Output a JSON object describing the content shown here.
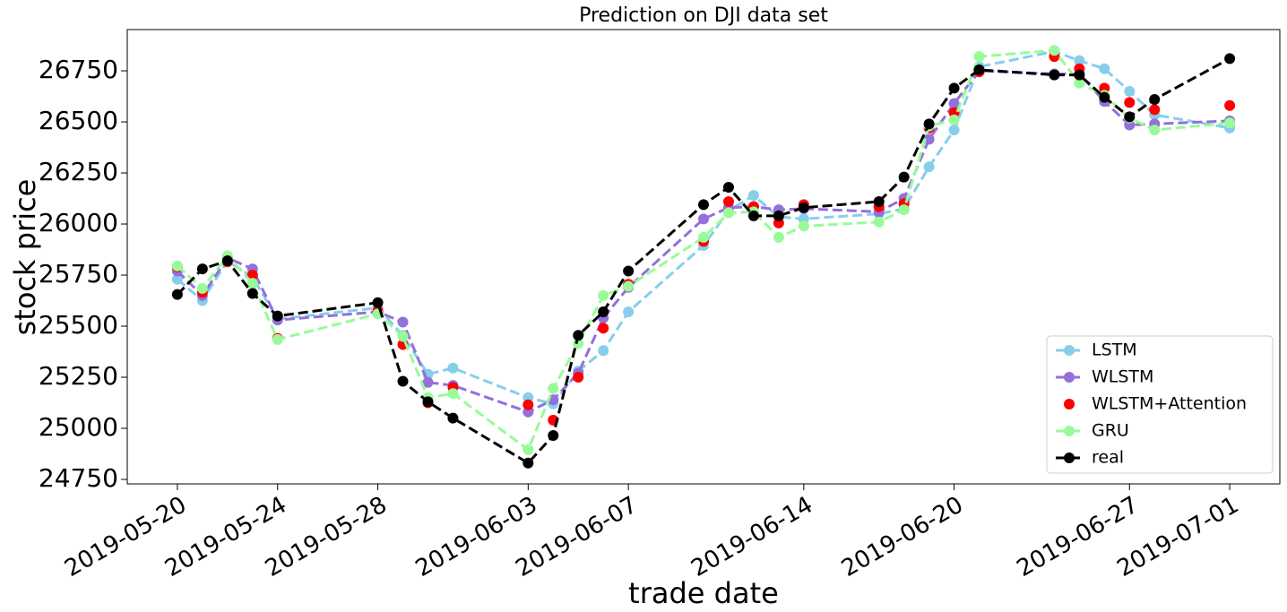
{
  "chart_data": {
    "type": "line",
    "title": "Prediction on DJI data set",
    "x_label": "trade date",
    "y_label": "stock price",
    "x": [
      "2019-05-20",
      "2019-05-21",
      "2019-05-22",
      "2019-05-23",
      "2019-05-24",
      "2019-05-28",
      "2019-05-29",
      "2019-05-30",
      "2019-05-31",
      "2019-06-03",
      "2019-06-04",
      "2019-06-05",
      "2019-06-06",
      "2019-06-07",
      "2019-06-10",
      "2019-06-11",
      "2019-06-12",
      "2019-06-13",
      "2019-06-14",
      "2019-06-17",
      "2019-06-18",
      "2019-06-19",
      "2019-06-20",
      "2019-06-21",
      "2019-06-24",
      "2019-06-25",
      "2019-06-26",
      "2019-06-27",
      "2019-06-28",
      "2019-07-01"
    ],
    "xlim": [
      "2019-05-18",
      "2019-07-03"
    ],
    "xticks": [
      "2019-05-20",
      "2019-05-24",
      "2019-05-28",
      "2019-06-03",
      "2019-06-07",
      "2019-06-14",
      "2019-06-20",
      "2019-06-27",
      "2019-07-01"
    ],
    "ylim": [
      24728,
      26952
    ],
    "yticks": [
      24750,
      25000,
      25250,
      25500,
      25750,
      26000,
      26250,
      26500,
      26750
    ],
    "legend": "lower right",
    "series": [
      {
        "name": "LSTM",
        "color": "#87ceeb",
        "linestyle": "dashed",
        "values": [
          25730,
          25625,
          25820,
          25740,
          25535,
          25590,
          25455,
          25265,
          25295,
          25150,
          25120,
          25280,
          25380,
          25570,
          25895,
          26065,
          26140,
          26035,
          26025,
          26050,
          26075,
          26280,
          26460,
          26770,
          26845,
          26800,
          26760,
          26650,
          26535,
          26470
        ]
      },
      {
        "name": "WLSTM",
        "color": "#9370db",
        "linestyle": "dashed",
        "values": [
          25770,
          25650,
          25835,
          25780,
          25530,
          25570,
          25520,
          25225,
          25210,
          25080,
          25140,
          25270,
          25540,
          25690,
          26025,
          26080,
          26085,
          26070,
          26075,
          26060,
          26125,
          26415,
          26590,
          26750,
          26735,
          26735,
          26600,
          26485,
          26490,
          26505
        ]
      },
      {
        "name": "WLSTM+Attention",
        "color": "#ff0000",
        "linestyle": "none",
        "values": [
          25790,
          25665,
          25815,
          25750,
          25440,
          25575,
          25410,
          25125,
          25200,
          25115,
          25040,
          25250,
          25490,
          25705,
          25915,
          26110,
          26085,
          26005,
          26095,
          26085,
          26100,
          26470,
          26545,
          26745,
          26820,
          26760,
          26665,
          26595,
          26560,
          26580
        ]
      },
      {
        "name": "GRU",
        "color": "#98fb98",
        "linestyle": "dashed",
        "values": [
          25795,
          25685,
          25845,
          25710,
          25435,
          25560,
          25450,
          25150,
          25170,
          24895,
          25195,
          25415,
          25650,
          25695,
          25935,
          26055,
          26060,
          25935,
          25990,
          26010,
          26070,
          26480,
          26510,
          26820,
          26850,
          26690,
          26630,
          26520,
          26460,
          26495
        ]
      },
      {
        "name": "real",
        "color": "#000000",
        "linestyle": "dashed",
        "values": [
          25655,
          25780,
          25820,
          25660,
          25550,
          25615,
          25230,
          25130,
          25050,
          24830,
          24965,
          25455,
          25570,
          25770,
          26095,
          26180,
          26040,
          26040,
          26080,
          26110,
          26230,
          26490,
          26665,
          26755,
          26730,
          26730,
          26620,
          26525,
          26610,
          26810
        ]
      }
    ]
  }
}
